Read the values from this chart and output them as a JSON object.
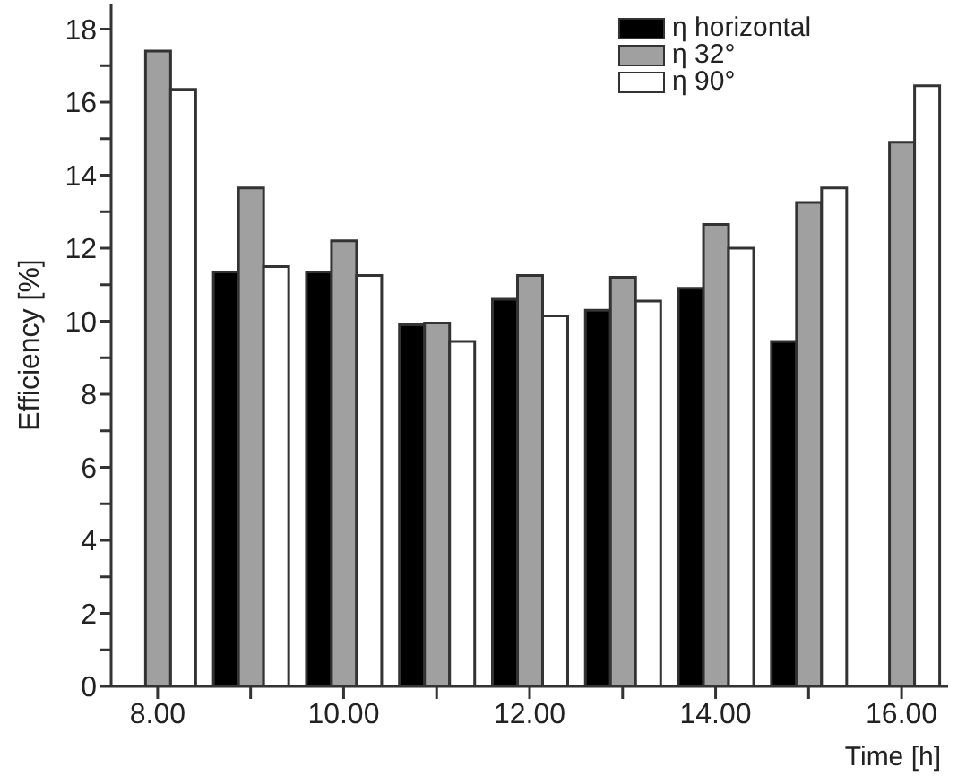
{
  "chart_data": {
    "type": "bar",
    "xlabel": "Time [h]",
    "ylabel": "Efficiency [%]",
    "categories": [
      "8.00",
      null,
      "10.00",
      null,
      "12.00",
      null,
      "14.00",
      null,
      "16.00"
    ],
    "series": [
      {
        "name": "η horizontal",
        "color": "#000000",
        "values": [
          null,
          11.35,
          11.35,
          9.9,
          10.6,
          10.3,
          10.9,
          9.45,
          null
        ]
      },
      {
        "name": "η 32°",
        "color": "#a0a0a0",
        "values": [
          17.4,
          13.65,
          12.2,
          9.95,
          11.25,
          11.2,
          12.65,
          13.25,
          14.9
        ]
      },
      {
        "name": "η 90°",
        "color": "#ffffff",
        "values": [
          16.35,
          11.5,
          11.25,
          9.45,
          10.15,
          10.55,
          12.0,
          13.65,
          16.45
        ]
      }
    ],
    "ylim": [
      0,
      18.7
    ],
    "yticks": [
      0,
      {
        "value": 1,
        "label": null
      },
      2,
      {
        "value": 3,
        "label": null
      },
      4,
      {
        "value": 5,
        "label": null
      },
      6,
      {
        "value": 7,
        "label": null
      },
      8,
      {
        "value": 9,
        "label": null
      },
      10,
      {
        "value": 11,
        "label": null
      },
      12,
      {
        "value": 13,
        "label": null
      },
      14,
      {
        "value": 15,
        "label": null
      },
      16,
      {
        "value": 17,
        "label": null
      },
      18
    ],
    "grid": false,
    "legend": "top right"
  }
}
